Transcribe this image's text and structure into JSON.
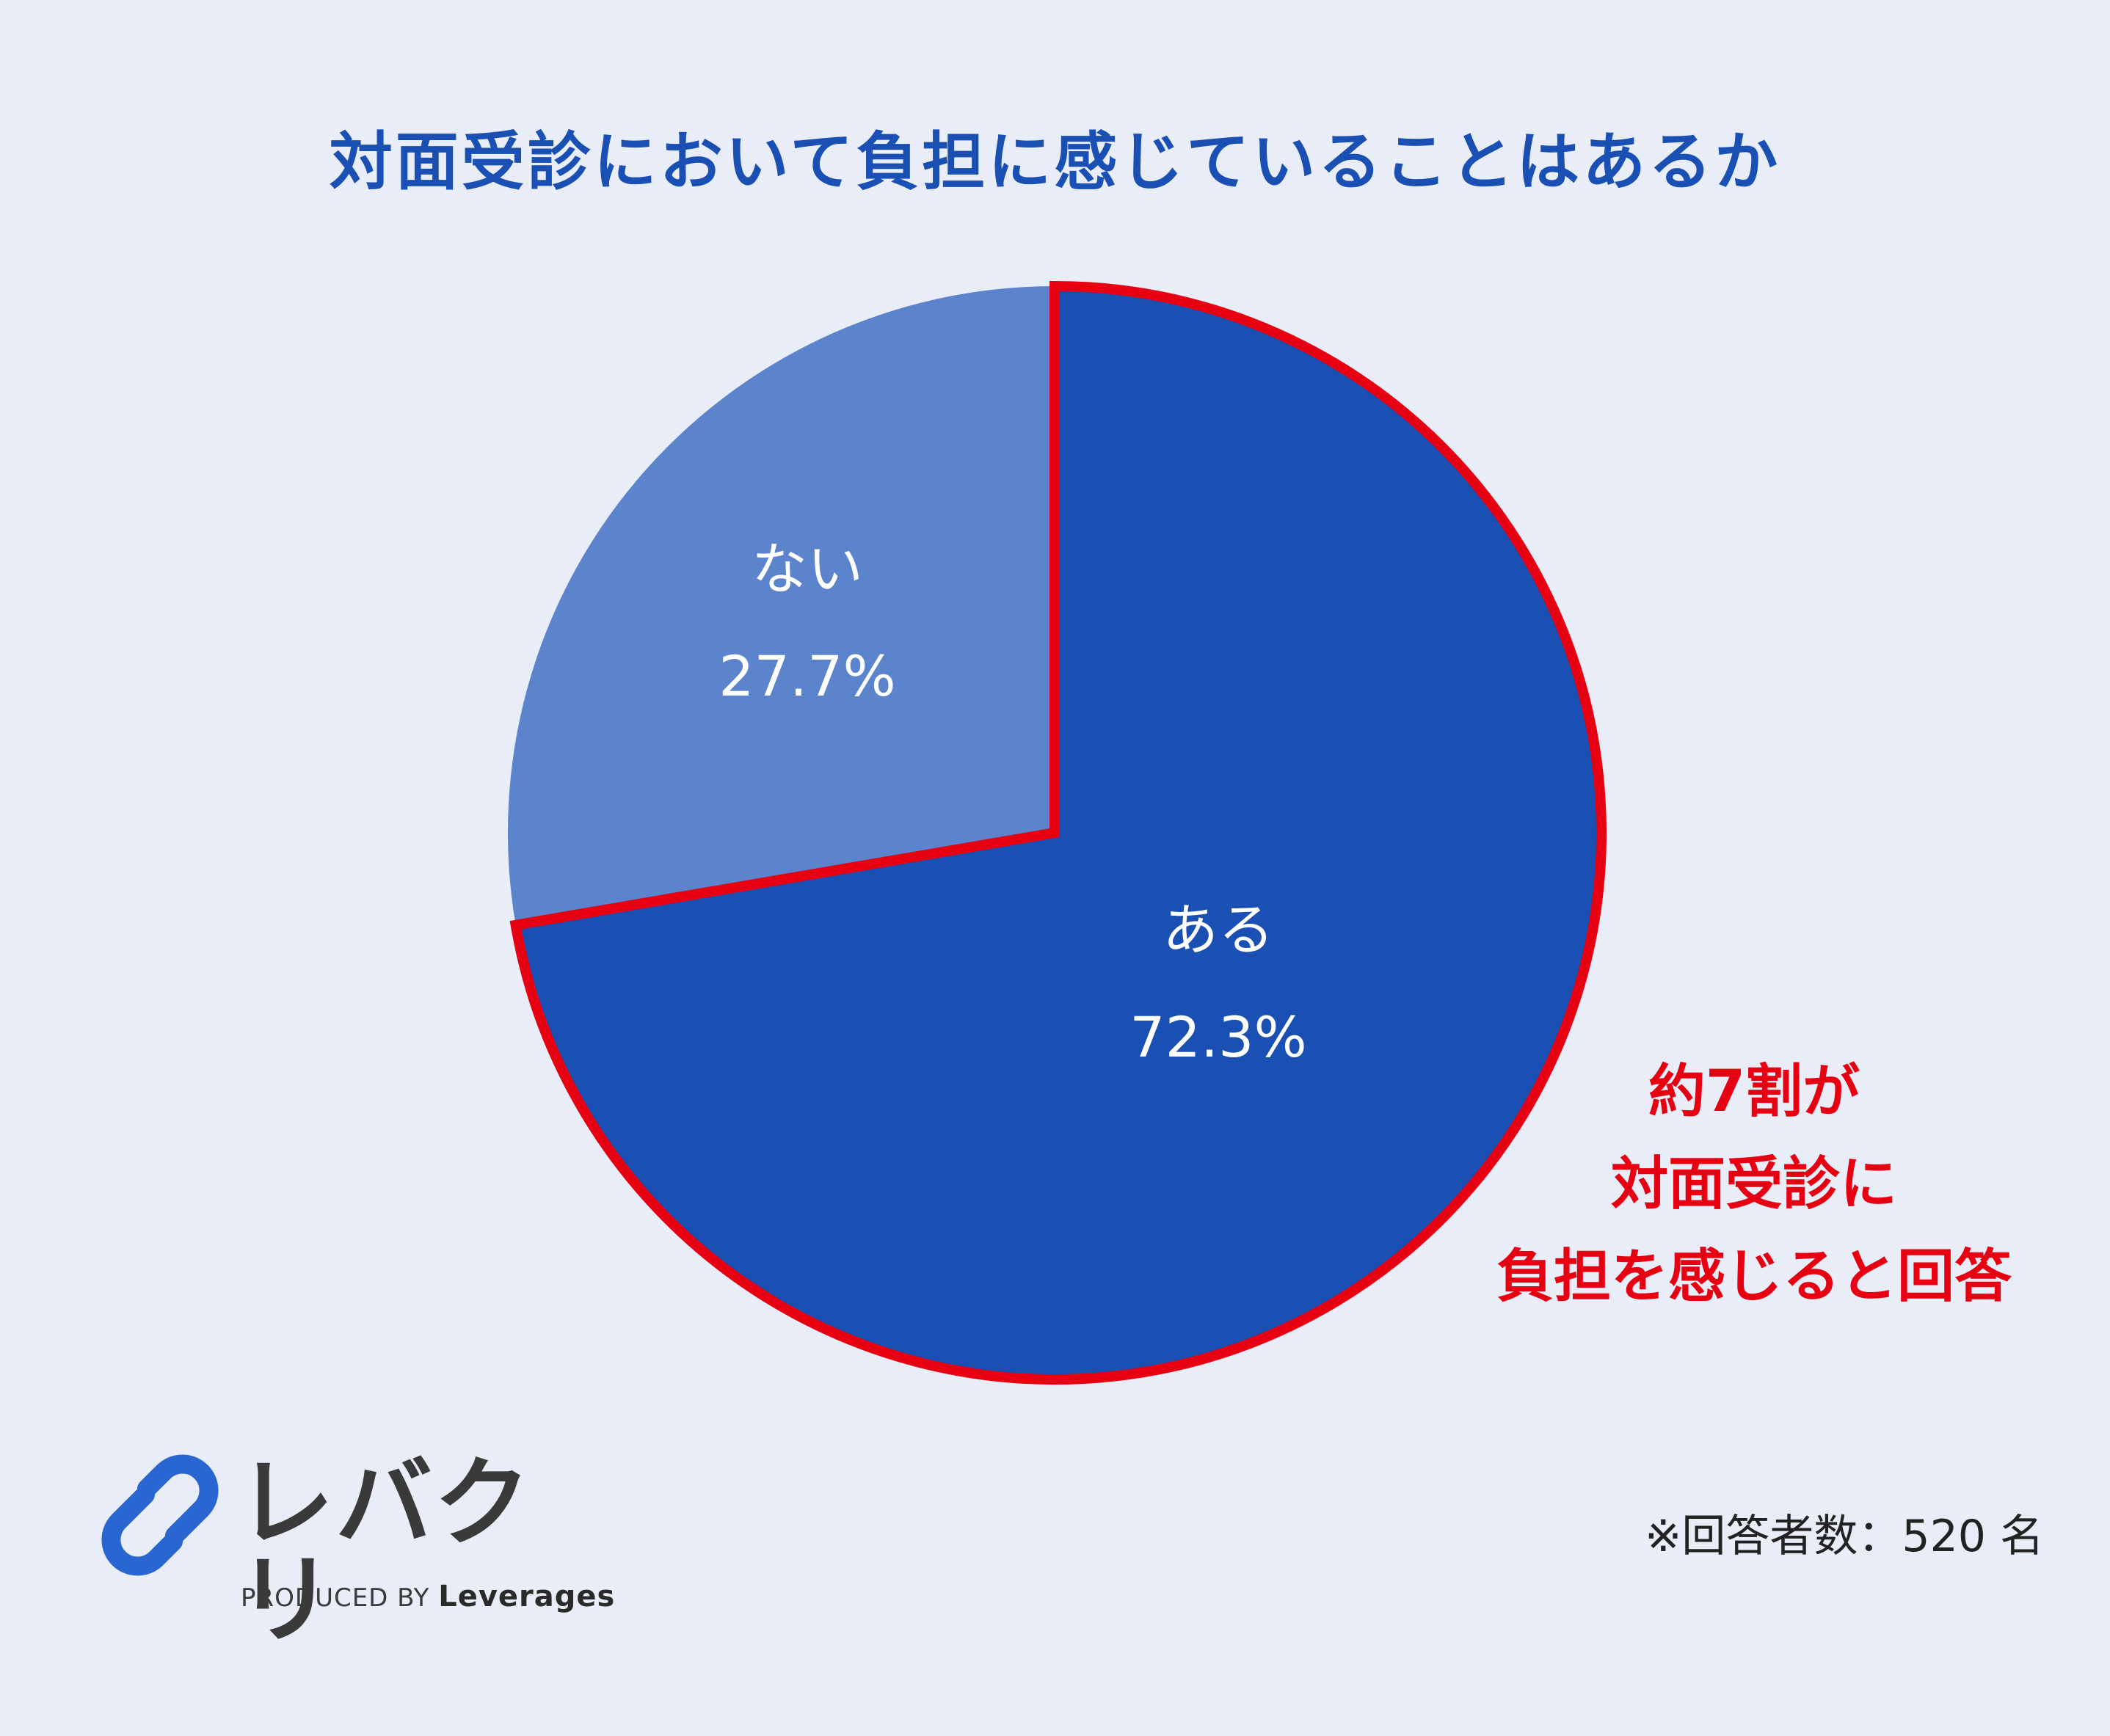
{
  "title": "対面受診において負担に感じていることはあるか",
  "chart_data": {
    "type": "pie",
    "title": "対面受診において負担に感じていることはあるか",
    "slices": [
      {
        "label": "ある",
        "value": 72.3,
        "percent_label": "72.3%",
        "color": "#1a4fb4",
        "highlighted": true
      },
      {
        "label": "ない",
        "value": 27.7,
        "percent_label": "27.7%",
        "color": "#5b84cc",
        "highlighted": false
      }
    ],
    "start": "12 o'clock",
    "direction": "clockwise",
    "highlight_color": "#e60012"
  },
  "callout": {
    "line1": "約7割が",
    "line2": "対面受診に",
    "line3": "負担を感じると回答"
  },
  "footnote": "※回答者数：520 名",
  "logo": {
    "name": "レバクリ",
    "produced_by": "PRODUCED BY",
    "company": "Leverages",
    "mark_color": "#2a66d2"
  }
}
